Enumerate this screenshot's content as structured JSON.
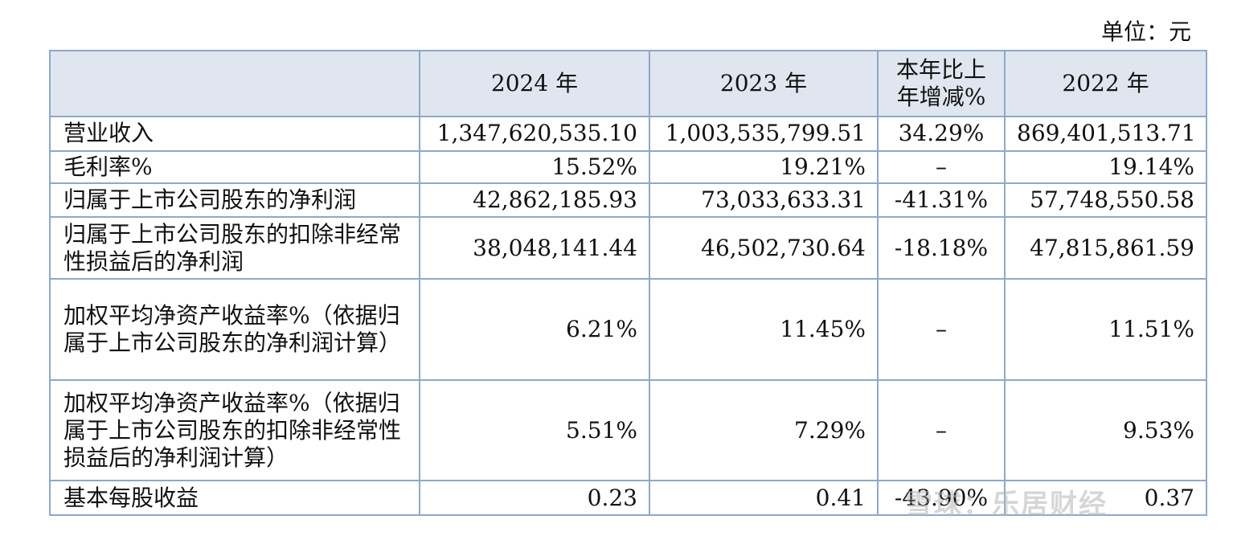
{
  "unit_label": "单位：元",
  "header": {
    "col1": "",
    "col2": "2024 年",
    "col3": "2023 年",
    "col4": "本年比上年增减%",
    "col5": "2022 年"
  },
  "rows": [
    {
      "label": "营业收入",
      "v2024": "1,347,620,535.10",
      "v2023": "1,003,535,799.51",
      "change": "34.29%",
      "v2022": "869,401,513.71"
    },
    {
      "label": "毛利率%",
      "v2024": "15.52%",
      "v2023": "19.21%",
      "change": "–",
      "v2022": "19.14%"
    },
    {
      "label": "归属于上市公司股东的净利润",
      "v2024": "42,862,185.93",
      "v2023": "73,033,633.31",
      "change": "-41.31%",
      "v2022": "57,748,550.58"
    },
    {
      "label": "归属于上市公司股东的扣除非经常性损益后的净利润",
      "v2024": "38,048,141.44",
      "v2023": "46,502,730.64",
      "change": "-18.18%",
      "v2022": "47,815,861.59"
    },
    {
      "label": "加权平均净资产收益率%（依据归属于上市公司股东的净利润计算）",
      "v2024": "6.21%",
      "v2023": "11.45%",
      "change": "–",
      "v2022": "11.51%"
    },
    {
      "label": "加权平均净资产收益率%（依据归属于上市公司股东的扣除非经常性损益后的净利润计算）",
      "v2024": "5.51%",
      "v2023": "7.29%",
      "change": "–",
      "v2022": "9.53%"
    },
    {
      "label": "基本每股收益",
      "v2024": "0.23",
      "v2023": "0.41",
      "change": "-43.90%",
      "v2022": "0.37"
    }
  ],
  "watermark": "雪球：乐居财经"
}
